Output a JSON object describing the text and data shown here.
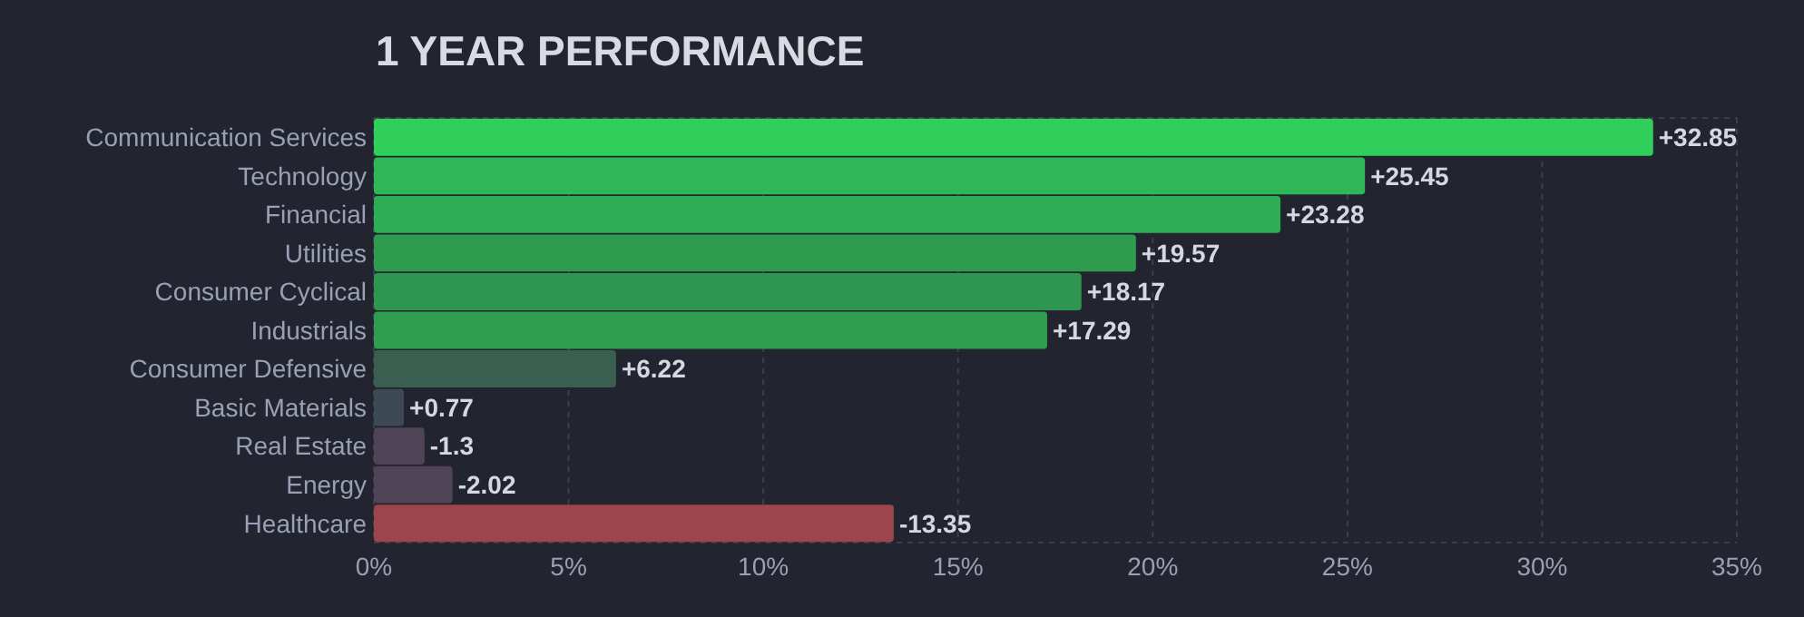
{
  "chart_data": {
    "type": "bar",
    "orientation": "horizontal",
    "title": "1 YEAR PERFORMANCE",
    "categories": [
      "Communication Services",
      "Technology",
      "Financial",
      "Utilities",
      "Consumer Cyclical",
      "Industrials",
      "Consumer Defensive",
      "Basic Materials",
      "Real Estate",
      "Energy",
      "Healthcare"
    ],
    "values": [
      32.85,
      25.45,
      23.28,
      19.57,
      18.17,
      17.29,
      6.22,
      0.77,
      -1.3,
      -2.02,
      -13.35
    ],
    "base": [
      0,
      0,
      0,
      0,
      0,
      0,
      0,
      0,
      1.3,
      2.02,
      13.35
    ],
    "value_labels": [
      "+32.85",
      "+25.45",
      "+23.28",
      "+19.57",
      "+18.17",
      "+17.29",
      "+6.22",
      "+0.77",
      "-1.3",
      "-2.02",
      "-13.35"
    ],
    "colors": [
      "#30cf5c",
      "#2fb657",
      "#2eae54",
      "#2e9b4e",
      "#2e9650",
      "#2e9d4d",
      "#3a5e4f",
      "#3d4a53",
      "#4e4455",
      "#4e4455",
      "#9c454c"
    ],
    "xlim": [
      0,
      35
    ],
    "xticks": [
      {
        "value": 0,
        "label": "0%"
      },
      {
        "value": 5,
        "label": "5%"
      },
      {
        "value": 10,
        "label": "10%"
      },
      {
        "value": 15,
        "label": "15%"
      },
      {
        "value": 20,
        "label": "20%"
      },
      {
        "value": 25,
        "label": "25%"
      },
      {
        "value": 30,
        "label": "30%"
      },
      {
        "value": 35,
        "label": "35%"
      }
    ],
    "grid": "x"
  }
}
